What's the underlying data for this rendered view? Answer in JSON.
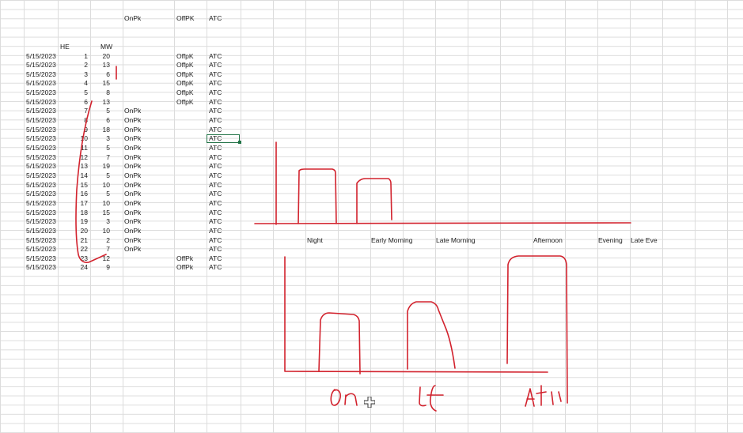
{
  "headers": {
    "onpk": "OnPk",
    "offpk": "OffPK",
    "atc": "ATC",
    "he": "HE",
    "mw": "MW"
  },
  "rows": [
    {
      "date": "5/15/2023",
      "he": "1",
      "mw": "20",
      "onpk": "",
      "offpk": "OffpK",
      "atc": "ATC"
    },
    {
      "date": "5/15/2023",
      "he": "2",
      "mw": "13",
      "onpk": "",
      "offpk": "OffpK",
      "atc": "ATC"
    },
    {
      "date": "5/15/2023",
      "he": "3",
      "mw": "6",
      "onpk": "",
      "offpk": "OffpK",
      "atc": "ATC"
    },
    {
      "date": "5/15/2023",
      "he": "4",
      "mw": "15",
      "onpk": "",
      "offpk": "OffpK",
      "atc": "ATC"
    },
    {
      "date": "5/15/2023",
      "he": "5",
      "mw": "8",
      "onpk": "",
      "offpk": "OffpK",
      "atc": "ATC"
    },
    {
      "date": "5/15/2023",
      "he": "6",
      "mw": "13",
      "onpk": "",
      "offpk": "OffpK",
      "atc": "ATC"
    },
    {
      "date": "5/15/2023",
      "he": "7",
      "mw": "5",
      "onpk": "OnPk",
      "offpk": "",
      "atc": "ATC"
    },
    {
      "date": "5/15/2023",
      "he": "8",
      "mw": "6",
      "onpk": "OnPk",
      "offpk": "",
      "atc": "ATC"
    },
    {
      "date": "5/15/2023",
      "he": "9",
      "mw": "18",
      "onpk": "OnPk",
      "offpk": "",
      "atc": "ATC"
    },
    {
      "date": "5/15/2023",
      "he": "10",
      "mw": "3",
      "onpk": "OnPk",
      "offpk": "",
      "atc": "ATC"
    },
    {
      "date": "5/15/2023",
      "he": "11",
      "mw": "5",
      "onpk": "OnPk",
      "offpk": "",
      "atc": "ATC"
    },
    {
      "date": "5/15/2023",
      "he": "12",
      "mw": "7",
      "onpk": "OnPk",
      "offpk": "",
      "atc": "ATC"
    },
    {
      "date": "5/15/2023",
      "he": "13",
      "mw": "19",
      "onpk": "OnPk",
      "offpk": "",
      "atc": "ATC"
    },
    {
      "date": "5/15/2023",
      "he": "14",
      "mw": "5",
      "onpk": "OnPk",
      "offpk": "",
      "atc": "ATC"
    },
    {
      "date": "5/15/2023",
      "he": "15",
      "mw": "10",
      "onpk": "OnPk",
      "offpk": "",
      "atc": "ATC"
    },
    {
      "date": "5/15/2023",
      "he": "16",
      "mw": "5",
      "onpk": "OnPk",
      "offpk": "",
      "atc": "ATC"
    },
    {
      "date": "5/15/2023",
      "he": "17",
      "mw": "10",
      "onpk": "OnPk",
      "offpk": "",
      "atc": "ATC"
    },
    {
      "date": "5/15/2023",
      "he": "18",
      "mw": "15",
      "onpk": "OnPk",
      "offpk": "",
      "atc": "ATC"
    },
    {
      "date": "5/15/2023",
      "he": "19",
      "mw": "3",
      "onpk": "OnPk",
      "offpk": "",
      "atc": "ATC"
    },
    {
      "date": "5/15/2023",
      "he": "20",
      "mw": "10",
      "onpk": "OnPk",
      "offpk": "",
      "atc": "ATC"
    },
    {
      "date": "5/15/2023",
      "he": "21",
      "mw": "2",
      "onpk": "OnPk",
      "offpk": "",
      "atc": "ATC"
    },
    {
      "date": "5/15/2023",
      "he": "22",
      "mw": "7",
      "onpk": "OnPk",
      "offpk": "",
      "atc": "ATC"
    },
    {
      "date": "5/15/2023",
      "he": "23",
      "mw": "12",
      "onpk": "",
      "offpk": "OffPk",
      "atc": "ATC"
    },
    {
      "date": "5/15/2023",
      "he": "24",
      "mw": "9",
      "onpk": "",
      "offpk": "OffPk",
      "atc": "ATC"
    }
  ],
  "periods": [
    "Night",
    "Early Morning",
    "Late Morning",
    "Afternoon",
    "Evening",
    "Late Eve"
  ],
  "ink_color": "#d2222d",
  "selection_color": "#217346"
}
